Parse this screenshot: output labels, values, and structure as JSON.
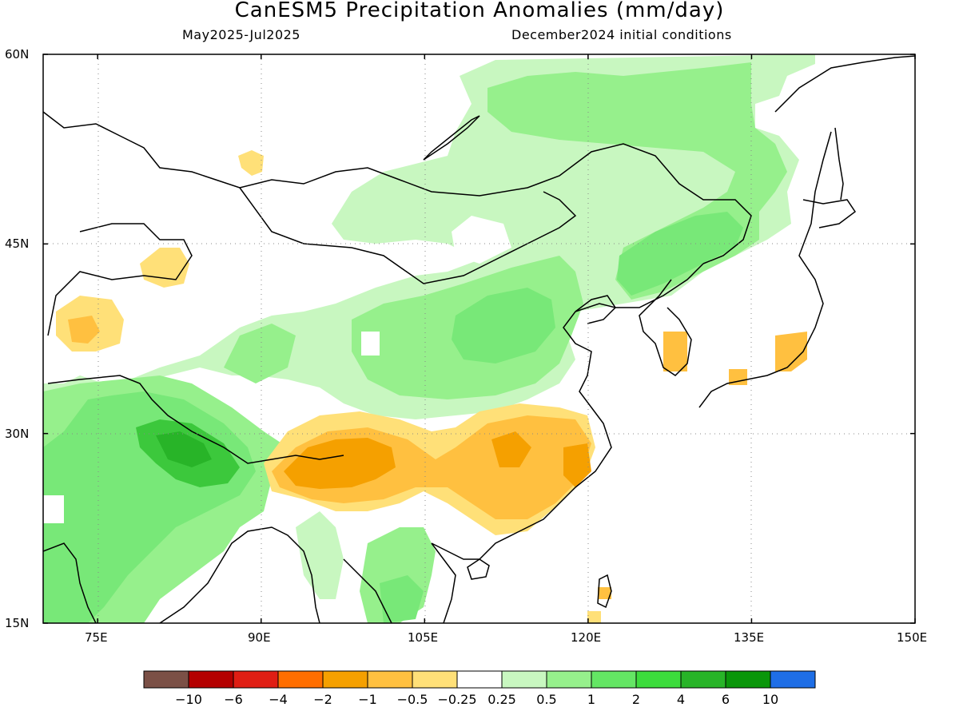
{
  "title": "CanESM5 Precipitation Anomalies (mm/day)",
  "period": "May2025-Jul2025",
  "init": "December2024 initial conditions",
  "map": {
    "lon_range": [
      70,
      150
    ],
    "lat_range": [
      15,
      60
    ],
    "lat_labels": [
      {
        "value": 60,
        "label": "60N"
      },
      {
        "value": 45,
        "label": "45N"
      },
      {
        "value": 30,
        "label": "30N"
      },
      {
        "value": 15,
        "label": "15N"
      }
    ],
    "lon_labels": [
      {
        "value": 75,
        "label": "75E"
      },
      {
        "value": 90,
        "label": "90E"
      },
      {
        "value": 105,
        "label": "105E"
      },
      {
        "value": 120,
        "label": "120E"
      },
      {
        "value": 135,
        "label": "135E"
      },
      {
        "value": 150,
        "label": "150E"
      }
    ],
    "anomaly_regions": [
      {
        "name": "mongolia-wet-band",
        "category": 8,
        "color": "#c8f7c0"
      },
      {
        "name": "manchuria-wet",
        "category": 9,
        "color": "#96f08c"
      },
      {
        "name": "north-china-wet",
        "category": 10,
        "color": "#78e878"
      },
      {
        "name": "tibet-india-wet",
        "category": 10,
        "color": "#78e878"
      },
      {
        "name": "nepal-wet-core",
        "category": 11,
        "color": "#3cc83c"
      },
      {
        "name": "south-china-dry",
        "category": 5,
        "color": "#ffc040"
      },
      {
        "name": "south-china-dry-core",
        "category": 4,
        "color": "#f5a000"
      },
      {
        "name": "kazakhstan-dry",
        "category": 6,
        "color": "#ffe078"
      },
      {
        "name": "korea-dry",
        "category": 5,
        "color": "#ffc040"
      },
      {
        "name": "japan-dry",
        "category": 5,
        "color": "#ffc040"
      },
      {
        "name": "indochina-wet",
        "category": 9,
        "color": "#96f08c"
      }
    ]
  },
  "colorbar": {
    "colors": [
      "#7b5046",
      "#b40000",
      "#e01e14",
      "#ff6e00",
      "#f5a000",
      "#ffc040",
      "#ffe078",
      "#ffffff",
      "#c8f7c0",
      "#96f08c",
      "#64e664",
      "#3cdc3c",
      "#28b428",
      "#0a960a",
      "#1e6ee6"
    ],
    "labels": [
      "-10",
      "-6",
      "-4",
      "-2",
      "-1",
      "-0.5",
      "-0.25",
      "0.25",
      "0.5",
      "1",
      "2",
      "4",
      "6",
      "10"
    ]
  }
}
